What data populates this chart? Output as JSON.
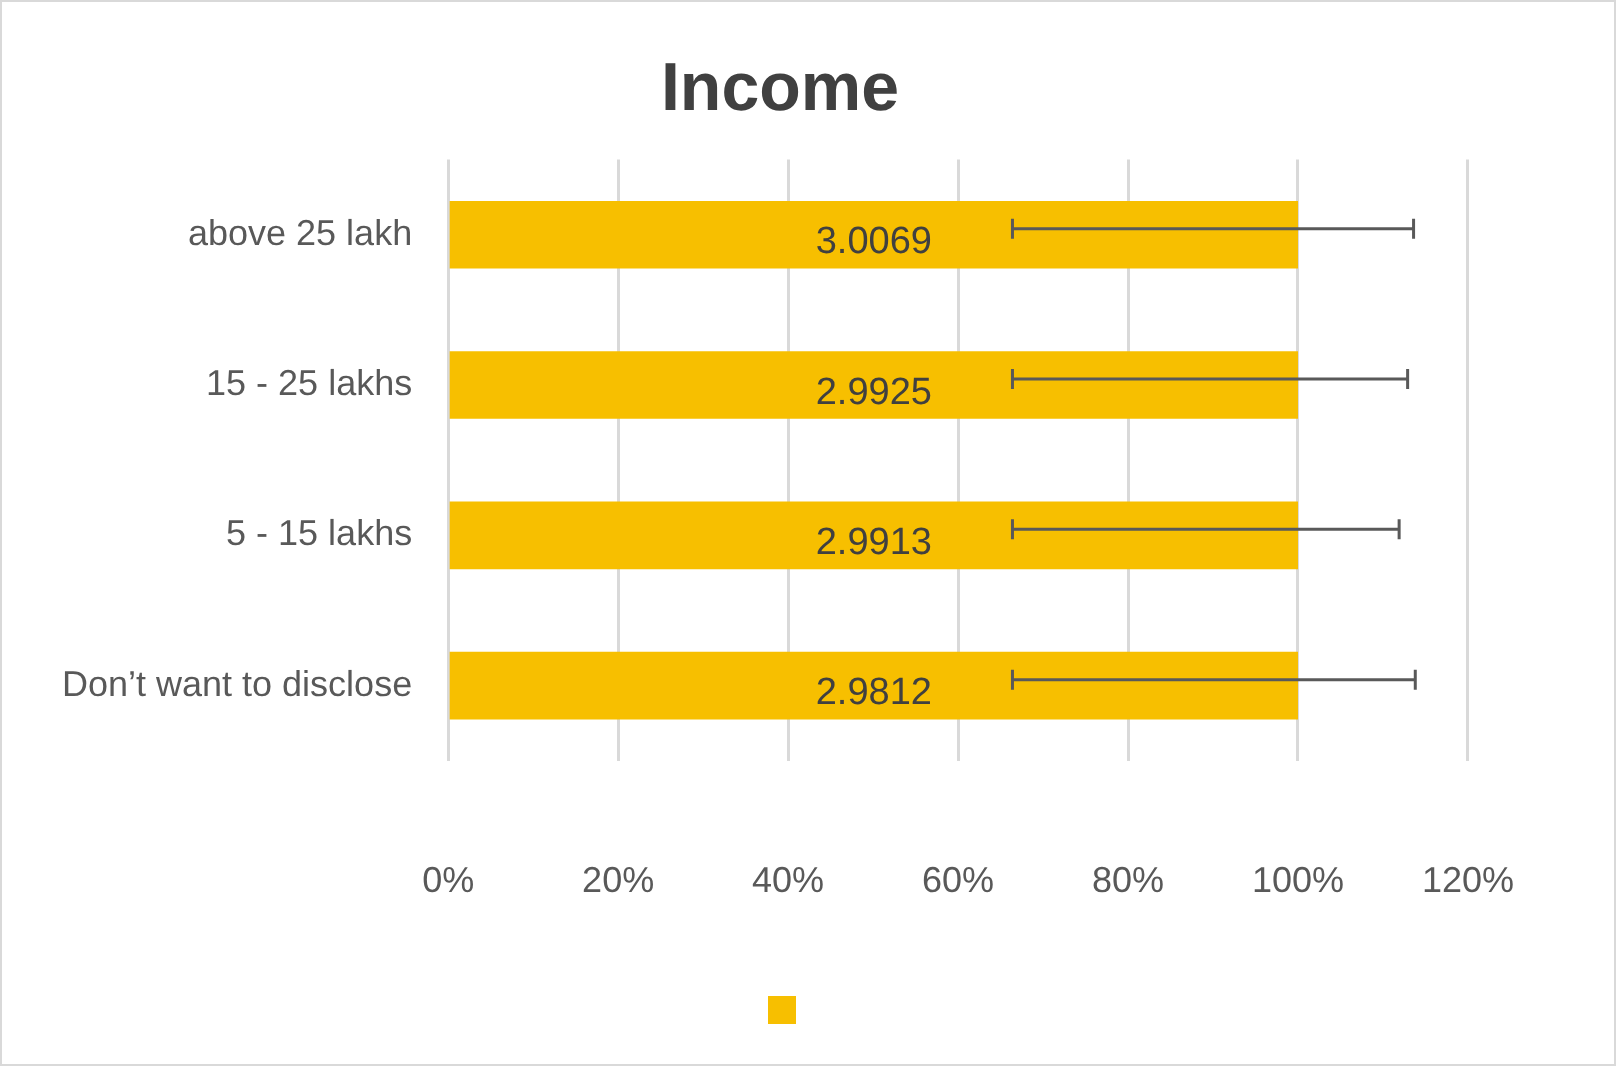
{
  "chart_data": {
    "type": "bar",
    "orientation": "horizontal",
    "title": "Income",
    "categories": [
      "above 25 lakh",
      "15 - 25 lakhs",
      "5 - 15 lakhs",
      "Don’t want to disclose"
    ],
    "series": [
      {
        "color": "#f7bf00",
        "values": [
          100,
          100,
          100,
          100
        ],
        "errors": [
          [
            66.4,
            113.6
          ],
          [
            66.4,
            112.9
          ],
          [
            66.4,
            111.9
          ],
          [
            66.4,
            113.8
          ]
        ]
      }
    ],
    "annotations": [
      "3.0069",
      "2.9925",
      "2.9913",
      "2.9812"
    ],
    "xlim": [
      0,
      120
    ],
    "xticks": [
      {
        "value": 0,
        "label": "0%"
      },
      {
        "value": 20,
        "label": "20%"
      },
      {
        "value": 40,
        "label": "40%"
      },
      {
        "value": 60,
        "label": "60%"
      },
      {
        "value": 80,
        "label": "80%"
      },
      {
        "value": 100,
        "label": "100%"
      },
      {
        "value": 120,
        "label": "120%"
      }
    ],
    "grid": "x"
  }
}
